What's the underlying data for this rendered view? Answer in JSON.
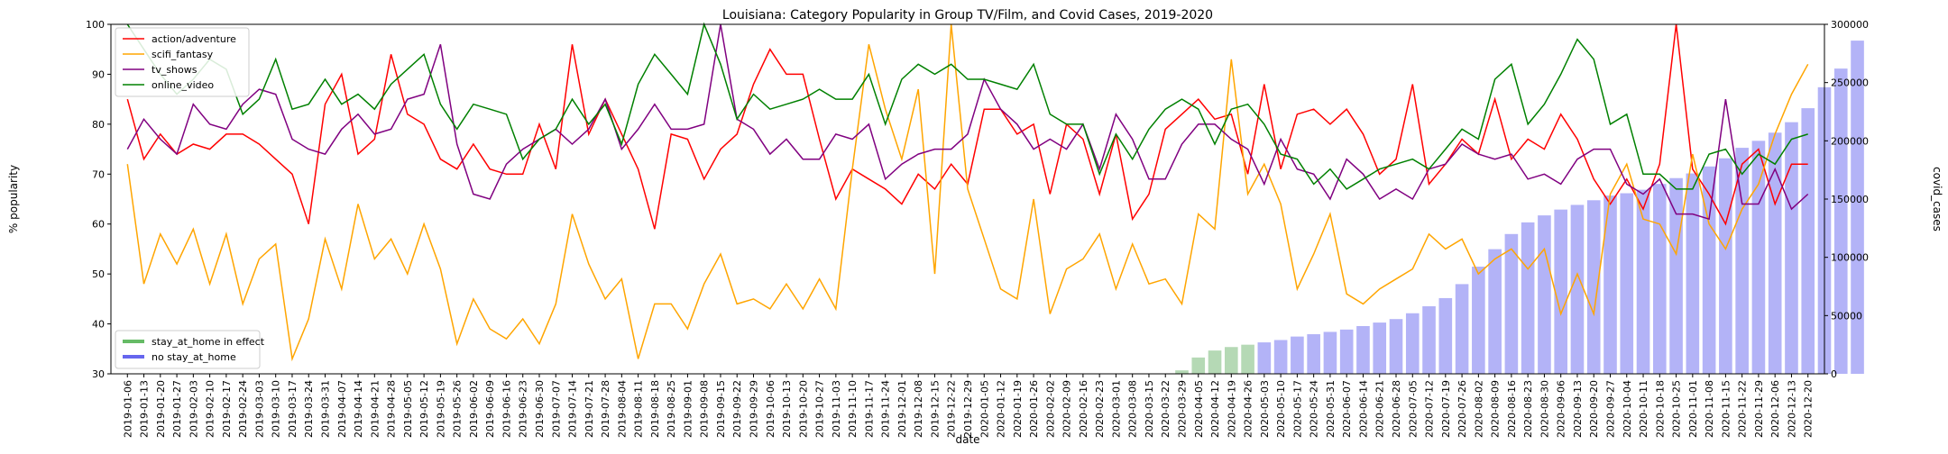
{
  "chart_data": {
    "type": "line",
    "title": "Louisiana: Category Popularity in Group TV/Film, and Covid Cases, 2019-2020",
    "xlabel": "date",
    "ylabel": "% popularity",
    "y2label": "covid_cases",
    "ylim": [
      30,
      100
    ],
    "yticks": [
      30,
      40,
      50,
      60,
      70,
      80,
      90,
      100
    ],
    "y2lim": [
      0,
      300000
    ],
    "y2ticks": [
      0,
      50000,
      100000,
      150000,
      200000,
      250000,
      300000
    ],
    "grid": false,
    "legend_top_placement": "top-left",
    "legend_bottom_placement": "bottom-left",
    "dates": [
      "2019-01-06",
      "2019-01-13",
      "2019-01-20",
      "2019-01-27",
      "2019-02-03",
      "2019-02-10",
      "2019-02-17",
      "2019-02-24",
      "2019-03-03",
      "2019-03-10",
      "2019-03-17",
      "2019-03-24",
      "2019-03-31",
      "2019-04-07",
      "2019-04-14",
      "2019-04-21",
      "2019-04-28",
      "2019-05-05",
      "2019-05-12",
      "2019-05-19",
      "2019-05-26",
      "2019-06-02",
      "2019-06-09",
      "2019-06-16",
      "2019-06-23",
      "2019-06-30",
      "2019-07-07",
      "2019-07-14",
      "2019-07-21",
      "2019-07-28",
      "2019-08-04",
      "2019-08-11",
      "2019-08-18",
      "2019-08-25",
      "2019-09-01",
      "2019-09-08",
      "2019-09-15",
      "2019-09-22",
      "2019-09-29",
      "2019-10-06",
      "2019-10-13",
      "2019-10-20",
      "2019-10-27",
      "2019-11-03",
      "2019-11-10",
      "2019-11-17",
      "2019-11-24",
      "2019-12-01",
      "2019-12-08",
      "2019-12-15",
      "2019-12-22",
      "2019-12-29",
      "2020-01-05",
      "2020-01-12",
      "2020-01-19",
      "2020-01-26",
      "2020-02-02",
      "2020-02-09",
      "2020-02-16",
      "2020-02-23",
      "2020-03-01",
      "2020-03-08",
      "2020-03-15",
      "2020-03-22",
      "2020-03-29",
      "2020-04-05",
      "2020-04-12",
      "2020-04-19",
      "2020-04-26",
      "2020-05-03",
      "2020-05-10",
      "2020-05-17",
      "2020-05-24",
      "2020-05-31",
      "2020-06-07",
      "2020-06-14",
      "2020-06-21",
      "2020-06-28",
      "2020-07-05",
      "2020-07-12",
      "2020-07-19",
      "2020-07-26",
      "2020-08-02",
      "2020-08-09",
      "2020-08-16",
      "2020-08-23",
      "2020-08-30",
      "2020-09-06",
      "2020-09-13",
      "2020-09-20",
      "2020-09-27",
      "2020-10-04",
      "2020-10-11",
      "2020-10-18",
      "2020-10-25",
      "2020-11-01",
      "2020-11-08",
      "2020-11-15",
      "2020-11-22",
      "2020-11-29",
      "2020-12-06",
      "2020-12-13",
      "2020-12-20"
    ],
    "series": [
      {
        "name": "action/adventure",
        "color": "#ff0000",
        "values": [
          85,
          73,
          78,
          74,
          76,
          75,
          78,
          78,
          76,
          73,
          70,
          60,
          84,
          90,
          74,
          77,
          94,
          82,
          80,
          73,
          71,
          76,
          71,
          70,
          70,
          80,
          71,
          96,
          78,
          85,
          78,
          71,
          59,
          78,
          77,
          69,
          75,
          78,
          88,
          95,
          90,
          90,
          77,
          65,
          71,
          69,
          67,
          64,
          70,
          67,
          72,
          68,
          83,
          83,
          78,
          80,
          66,
          80,
          77,
          66,
          78,
          61,
          66,
          79,
          82,
          85,
          81,
          82,
          70,
          88,
          71,
          82,
          83,
          80,
          83,
          78,
          70,
          73,
          88,
          68,
          72,
          77,
          74,
          85,
          73,
          77,
          75,
          82,
          77,
          69,
          64,
          69,
          63,
          72,
          100,
          71,
          66,
          60,
          72,
          75,
          64,
          72,
          72
        ]
      },
      {
        "name": "scifi_fantasy",
        "color": "#ffa500",
        "values": [
          72,
          48,
          58,
          52,
          59,
          48,
          58,
          44,
          53,
          56,
          33,
          41,
          57,
          47,
          64,
          53,
          57,
          50,
          60,
          51,
          36,
          45,
          39,
          37,
          41,
          36,
          44,
          62,
          52,
          45,
          49,
          33,
          44,
          44,
          39,
          48,
          54,
          44,
          45,
          43,
          48,
          43,
          49,
          43,
          71,
          96,
          83,
          73,
          87,
          50,
          100,
          67,
          57,
          47,
          45,
          65,
          42,
          51,
          53,
          58,
          47,
          56,
          48,
          49,
          44,
          62,
          59,
          93,
          66,
          72,
          64,
          47,
          54,
          62,
          46,
          44,
          47,
          49,
          51,
          58,
          55,
          57,
          50,
          53,
          55,
          51,
          55,
          42,
          50,
          42,
          66,
          72,
          61,
          60,
          54,
          74,
          60,
          55,
          63,
          68,
          78,
          86,
          92
        ]
      },
      {
        "name": "tv_shows",
        "color": "#800080",
        "values": [
          75,
          81,
          77,
          74,
          84,
          80,
          79,
          84,
          87,
          86,
          77,
          75,
          74,
          79,
          82,
          78,
          79,
          85,
          86,
          96,
          76,
          66,
          65,
          72,
          75,
          77,
          79,
          76,
          79,
          85,
          75,
          79,
          84,
          79,
          79,
          80,
          100,
          81,
          79,
          74,
          77,
          73,
          73,
          78,
          77,
          80,
          69,
          72,
          74,
          75,
          75,
          78,
          89,
          83,
          80,
          75,
          77,
          75,
          80,
          71,
          82,
          77,
          69,
          69,
          76,
          80,
          80,
          77,
          75,
          68,
          77,
          71,
          70,
          65,
          73,
          70,
          65,
          67,
          65,
          71,
          72,
          76,
          74,
          73,
          74,
          69,
          70,
          68,
          73,
          75,
          75,
          68,
          66,
          69,
          62,
          62,
          61,
          85,
          64,
          64,
          71,
          63,
          66
        ]
      },
      {
        "name": "online_video",
        "color": "#008000",
        "values": [
          100,
          95,
          90,
          86,
          89,
          93,
          91,
          82,
          85,
          93,
          83,
          84,
          89,
          84,
          86,
          83,
          88,
          91,
          94,
          84,
          79,
          84,
          83,
          82,
          73,
          77,
          79,
          85,
          80,
          84,
          76,
          88,
          94,
          90,
          86,
          100,
          92,
          81,
          86,
          83,
          84,
          85,
          87,
          85,
          85,
          90,
          80,
          89,
          92,
          90,
          92,
          89,
          89,
          88,
          87,
          92,
          82,
          80,
          80,
          70,
          78,
          73,
          79,
          83,
          85,
          83,
          76,
          83,
          84,
          80,
          74,
          73,
          68,
          71,
          67,
          69,
          71,
          72,
          73,
          71,
          75,
          79,
          77,
          89,
          92,
          80,
          84,
          90,
          97,
          93,
          80,
          82,
          70,
          70,
          67,
          67,
          74,
          75,
          70,
          74,
          72,
          77,
          78
        ]
      }
    ],
    "covid_cases": [
      0,
      0,
      0,
      0,
      0,
      0,
      0,
      0,
      0,
      0,
      0,
      0,
      0,
      0,
      0,
      0,
      0,
      0,
      0,
      0,
      0,
      0,
      0,
      0,
      0,
      0,
      0,
      0,
      0,
      0,
      0,
      0,
      0,
      0,
      0,
      0,
      0,
      0,
      0,
      0,
      0,
      0,
      0,
      0,
      0,
      0,
      0,
      0,
      0,
      0,
      0,
      0,
      0,
      0,
      0,
      0,
      0,
      0,
      0,
      0,
      0,
      0,
      0,
      0,
      3000,
      14000,
      20000,
      23000,
      25000,
      27000,
      29000,
      32000,
      34000,
      36000,
      38000,
      41000,
      44000,
      47000,
      52000,
      58000,
      65000,
      77000,
      92000,
      107000,
      120000,
      130000,
      136000,
      141000,
      145000,
      149000,
      153000,
      155000,
      158000,
      163000,
      168000,
      172000,
      178000,
      185000,
      194000,
      200000,
      207000,
      216000,
      228000,
      246000,
      262000,
      286000
    ],
    "stay_at_home": [
      false,
      false,
      false,
      false,
      false,
      false,
      false,
      false,
      false,
      false,
      false,
      false,
      false,
      false,
      false,
      false,
      false,
      false,
      false,
      false,
      false,
      false,
      false,
      false,
      false,
      false,
      false,
      false,
      false,
      false,
      false,
      false,
      false,
      false,
      false,
      false,
      false,
      false,
      false,
      false,
      false,
      false,
      false,
      false,
      false,
      false,
      false,
      false,
      false,
      false,
      false,
      false,
      false,
      false,
      false,
      false,
      false,
      false,
      false,
      false,
      false,
      false,
      false,
      false,
      true,
      true,
      true,
      true,
      true,
      false,
      false,
      false,
      false,
      false,
      false,
      false,
      false,
      false,
      false,
      false,
      false,
      false,
      false,
      false,
      false,
      false,
      false,
      false,
      false,
      false,
      false,
      false,
      false,
      false,
      false,
      false,
      false,
      false,
      false,
      false,
      false,
      false,
      false
    ],
    "bar_legend": [
      {
        "name": "stay_at_home in effect",
        "color": "#66bb66"
      },
      {
        "name": "no stay_at_home",
        "color": "#6666ee"
      }
    ],
    "bar_colors": {
      "stay": "#b5d9b5",
      "no_stay": "#b3b3f7"
    }
  }
}
